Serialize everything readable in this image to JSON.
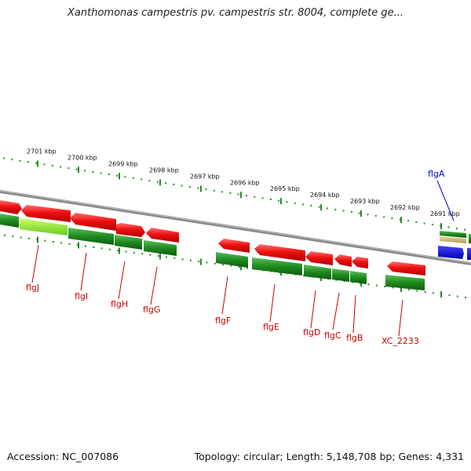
{
  "title": "Xanthomonas campestris pv. campestris str. 8004, complete ge...",
  "footer": {
    "accession": "Accession: NC_007086",
    "summary": "Topology: circular; Length: 5,148,708 bp; Genes: 4,331"
  },
  "colors": {
    "forward_gene": "#e81010",
    "cds_box": "#1f8a1f",
    "highlight_box": "#99ee33",
    "backbone": "#8a8a8a",
    "tick": "#2a8a2a",
    "gene_label": "#cc0000",
    "selected_label": "#0000cc",
    "blue_feature": "#0000ee"
  },
  "scale_labels": [
    "2701 kbp",
    "2700 kbp",
    "2699 kbp",
    "2698 kbp",
    "2697 kbp",
    "2696 kbp",
    "2695 kbp",
    "2694 kbp",
    "2693 kbp",
    "2692 kbp",
    "2691 kbp"
  ],
  "gene_labels": [
    {
      "name": "flgJ",
      "color": "red"
    },
    {
      "name": "flgI",
      "color": "red"
    },
    {
      "name": "flgH",
      "color": "red"
    },
    {
      "name": "flgG",
      "color": "red"
    },
    {
      "name": "flgF",
      "color": "red"
    },
    {
      "name": "flgE",
      "color": "red"
    },
    {
      "name": "flgD",
      "color": "red"
    },
    {
      "name": "flgC",
      "color": "red"
    },
    {
      "name": "flgB",
      "color": "red"
    },
    {
      "name": "XC_2233",
      "color": "red"
    },
    {
      "name": "flgA",
      "color": "blue"
    }
  ]
}
